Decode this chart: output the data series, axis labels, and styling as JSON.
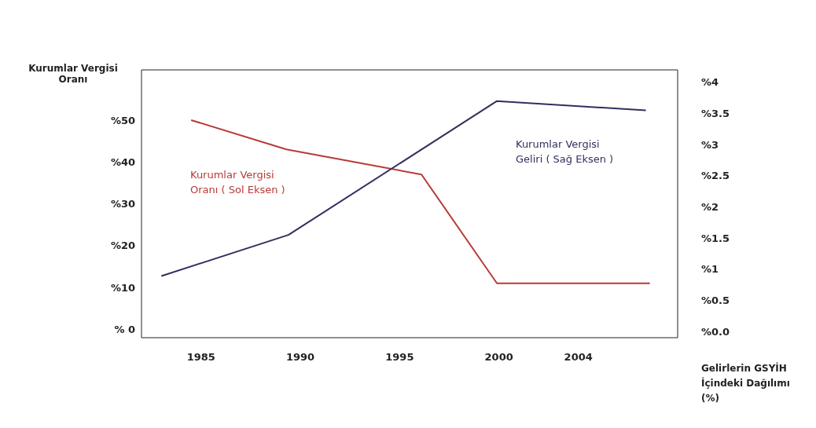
{
  "chart_data": {
    "type": "line",
    "ylabel": "Kurumlar Vergisi Oranı",
    "xlabel": "Gelirlerin GSYİH İçindeki Dağılımı (%)",
    "xlim": [
      1982,
      2009
    ],
    "xticks": [
      1985,
      1990,
      1995,
      2000,
      2004
    ],
    "ylim": [
      -2,
      62
    ],
    "yticks": [
      {
        "value": 0,
        "label": "% 0"
      },
      {
        "value": 10,
        "label": "%10"
      },
      {
        "value": 20,
        "label": "%20"
      },
      {
        "value": 30,
        "label": "%30"
      },
      {
        "value": 40,
        "label": "%40"
      },
      {
        "value": 50,
        "label": "%50"
      }
    ],
    "y2lim": [
      -0.1,
      4.2
    ],
    "y2ticks": [
      {
        "value": 0,
        "label": "%0.0"
      },
      {
        "value": 0.5,
        "label": "%0.5"
      },
      {
        "value": 1,
        "label": "%1"
      },
      {
        "value": 1.5,
        "label": "%1.5"
      },
      {
        "value": 2,
        "label": "%2"
      },
      {
        "value": 2.5,
        "label": "%2.5"
      },
      {
        "value": 3,
        "label": "%3"
      },
      {
        "value": 3.5,
        "label": "%3.5"
      },
      {
        "value": 4,
        "label": "%4"
      }
    ],
    "marker": "none",
    "line_style": "solid",
    "series": [
      {
        "name": "Kurumlar Vergisi Oranı ( Sol Eksen )",
        "color": "#b83a36",
        "x": [
          1984.5,
          1989.3,
          1996.1,
          1999.9,
          2007.6
        ],
        "values": [
          50,
          43,
          37,
          11,
          11
        ]
      },
      {
        "name": "Kurumlar Vergisi Geliri ( Sağ Eksen )",
        "color": "#2f305e",
        "axis": "y2",
        "x": [
          1983,
          1989.4,
          1999.9,
          2007.4
        ],
        "values": [
          0.89,
          1.55,
          3.7,
          3.55
        ]
      }
    ]
  }
}
